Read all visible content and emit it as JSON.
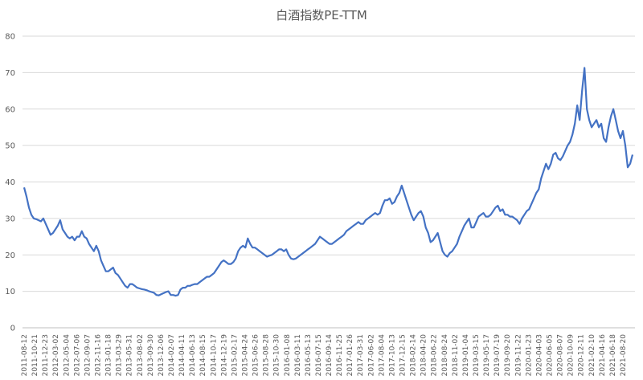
{
  "chart_data": {
    "type": "line",
    "title": "白酒指数PE-TTM",
    "xlabel": "",
    "ylabel": "",
    "ylim": [
      0,
      80
    ],
    "yticks": [
      0,
      10,
      20,
      30,
      40,
      50,
      60,
      70,
      80
    ],
    "grid": true,
    "legend": "none",
    "colors": {
      "line": "#4472C4",
      "grid": "#D9D9D9",
      "axis": "#BFBFBF"
    },
    "xticklabels": [
      "2011-08-12",
      "2011-10-21",
      "2011-12-23",
      "2012-03-02",
      "2012-05-04",
      "2012-07-06",
      "2012-09-07",
      "2012-11-16",
      "2013-01-18",
      "2013-03-29",
      "2013-05-31",
      "2013-08-02",
      "2013-09-30",
      "2013-12-06",
      "2014-02-07",
      "2014-04-11",
      "2014-06-13",
      "2014-08-15",
      "2014-10-17",
      "2014-12-19",
      "2015-02-17",
      "2015-04-24",
      "2015-06-26",
      "2015-08-28",
      "2015-10-30",
      "2016-01-08",
      "2016-03-11",
      "2016-05-13",
      "2016-07-15",
      "2016-09-14",
      "2016-11-25",
      "2017-01-26",
      "2017-03-31",
      "2017-06-02",
      "2017-08-04",
      "2017-10-13",
      "2017-12-15",
      "2018-02-14",
      "2018-04-20",
      "2018-06-22",
      "2018-08-24",
      "2018-11-02",
      "2019-01-04",
      "2019-03-15",
      "2019-05-17",
      "2019-07-19",
      "2019-09-20",
      "2019-11-22",
      "2020-01-23",
      "2020-04-03",
      "2020-06-05",
      "2020-08-07",
      "2020-10-09",
      "2020-12-11",
      "2021-02-10",
      "2021-04-16",
      "2021-06-18",
      "2021-08-20"
    ],
    "series": [
      {
        "values": [
          38.5,
          36,
          33,
          31,
          30,
          29.8,
          29.5,
          29.2,
          30,
          28.5,
          27,
          25.5,
          26,
          27,
          28,
          29.5,
          27,
          26,
          25,
          24.5,
          25,
          24,
          25,
          25,
          26.5,
          25,
          24.5,
          23,
          22,
          21,
          22.5,
          21,
          18.5,
          17,
          15.5,
          15.5,
          16,
          16.5,
          15,
          14.5,
          13.5,
          12.5,
          11.5,
          11,
          12,
          12,
          11.5,
          11,
          10.8,
          10.6,
          10.5,
          10.3,
          10,
          9.8,
          9.6,
          9,
          8.9,
          9.2,
          9.5,
          9.8,
          10,
          9,
          9,
          8.8,
          9,
          10.5,
          11,
          11,
          11.5,
          11.5,
          11.8,
          12,
          12,
          12.5,
          13,
          13.5,
          14,
          14,
          14.5,
          15,
          16,
          17,
          18,
          18.5,
          18,
          17.5,
          17.5,
          18,
          19,
          21,
          22,
          22.5,
          22,
          24.5,
          23,
          22,
          22,
          21.5,
          21,
          20.5,
          20,
          19.5,
          19.8,
          20,
          20.5,
          21,
          21.5,
          21.5,
          21,
          21.5,
          20,
          19,
          18.8,
          19,
          19.5,
          20,
          20.5,
          21,
          21.5,
          22,
          22.5,
          23,
          24,
          25,
          24.5,
          24,
          23.5,
          23,
          23,
          23.5,
          24,
          24.5,
          25,
          25.5,
          26.5,
          27,
          27.5,
          28,
          28.5,
          29,
          28.5,
          28.5,
          29.5,
          30,
          30.5,
          31,
          31.5,
          31,
          31.5,
          33.5,
          35,
          35,
          35.5,
          34,
          34.5,
          36,
          37,
          39,
          37,
          35,
          33,
          31,
          29.5,
          30.5,
          31.5,
          32,
          30.5,
          27.5,
          26,
          23.5,
          24,
          25,
          26,
          23.5,
          21,
          20,
          19.5,
          20.5,
          21,
          22,
          23,
          25,
          26.5,
          28,
          29,
          30,
          27.5,
          27.5,
          29,
          30.5,
          31,
          31.5,
          30.5,
          30.5,
          31,
          32,
          33,
          33.5,
          32,
          32.5,
          31,
          31,
          30.5,
          30.5,
          30,
          29.5,
          28.5,
          30,
          31,
          32,
          32.5,
          34,
          35.5,
          37,
          38,
          41,
          43,
          45,
          43.5,
          45,
          47.5,
          48,
          46.5,
          46,
          47,
          48.5,
          50,
          51,
          53,
          56,
          61,
          57,
          65,
          71.3,
          60,
          57,
          55,
          56,
          57,
          55,
          56,
          52,
          51,
          55,
          58,
          60,
          57,
          54,
          52,
          54,
          50,
          44,
          45,
          47.5
        ]
      }
    ]
  }
}
